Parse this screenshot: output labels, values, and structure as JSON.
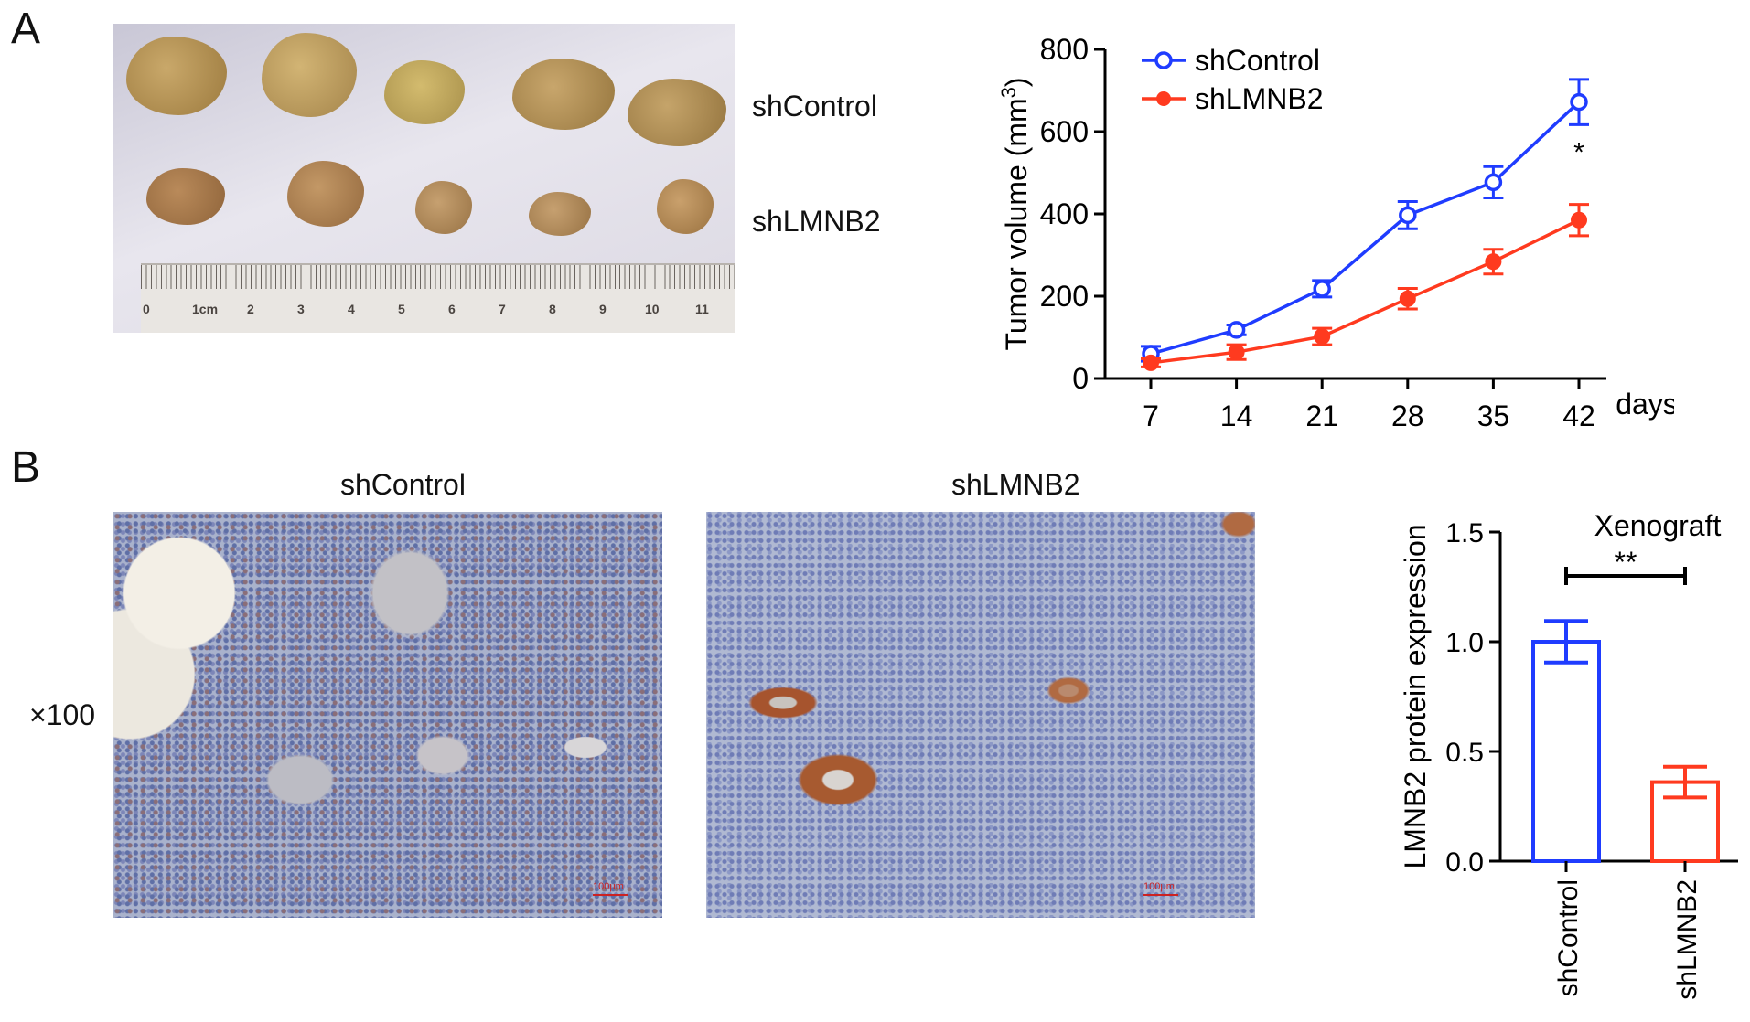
{
  "panels": {
    "a": {
      "letter": "A",
      "row_labels": [
        "shControl",
        "shLMNB2"
      ],
      "ruler_labels": [
        "0",
        "1cm",
        "2",
        "3",
        "4",
        "5",
        "6",
        "7",
        "8",
        "9",
        "10",
        "11"
      ]
    },
    "b": {
      "letter": "B",
      "magnification": "×100",
      "image_titles": [
        "shControl",
        "shLMNB2"
      ],
      "scale_bar": "100μm"
    }
  },
  "chart_data": [
    {
      "type": "line",
      "ylabel": "Tumor volume (mm",
      "ylabel_sup": "3",
      "ylabel_close": ")",
      "x_unit": "days",
      "x": [
        7,
        14,
        21,
        28,
        35,
        42
      ],
      "ylim": [
        0,
        800
      ],
      "yticks": [
        0,
        200,
        400,
        600,
        800
      ],
      "legend_position": "top-left",
      "annotation": "*",
      "series": [
        {
          "name": "shControl",
          "color": "#1f3cff",
          "marker": "open-circle",
          "values": [
            60,
            118,
            218,
            397,
            477,
            672
          ],
          "errors": [
            18,
            12,
            20,
            33,
            38,
            55
          ]
        },
        {
          "name": "shLMNB2",
          "color": "#ff3a1f",
          "marker": "filled-circle",
          "values": [
            38,
            64,
            102,
            194,
            284,
            385
          ],
          "errors": [
            10,
            18,
            20,
            25,
            30,
            38
          ]
        }
      ]
    },
    {
      "type": "bar",
      "title": "Xenograft",
      "ylabel": "LMNB2 protein expression",
      "categories": [
        "shControl",
        "shLMNB2"
      ],
      "values": [
        1.0,
        0.36
      ],
      "errors": [
        0.095,
        0.07
      ],
      "colors": [
        "#1f3cff",
        "#ff3a1f"
      ],
      "ylim": [
        0,
        1.5
      ],
      "yticks": [
        "0.0",
        "0.5",
        "1.0",
        "1.5"
      ],
      "annotation": "**"
    }
  ]
}
